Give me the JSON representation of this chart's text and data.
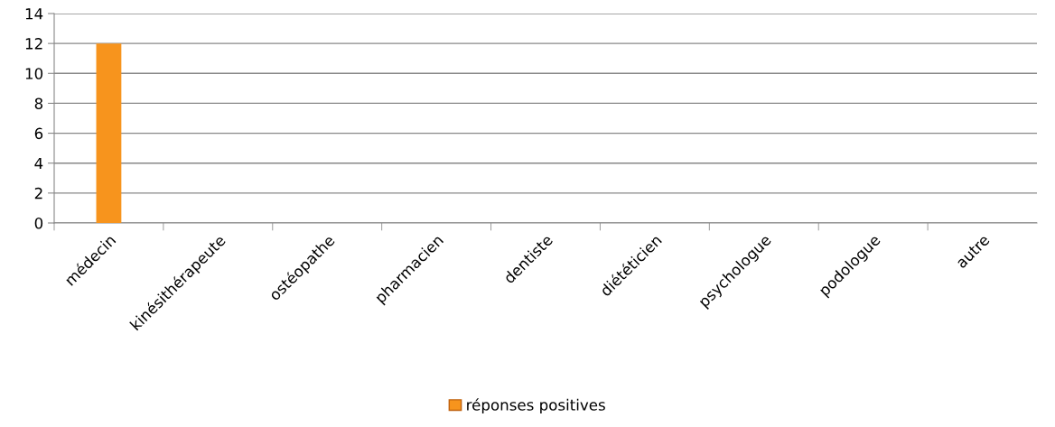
{
  "chart_data": {
    "type": "bar",
    "categories": [
      "médecin",
      "kinésithérapeute",
      "ostéopathe",
      "pharmacien",
      "dentiste",
      "diététicien",
      "psychologue",
      "podologue",
      "autre"
    ],
    "series": [
      {
        "name": "réponses positives",
        "color": "#f7941d",
        "values": [
          12,
          0,
          0,
          0,
          0,
          0,
          0,
          0,
          0
        ]
      }
    ],
    "ylim": [
      0,
      14
    ],
    "yticks": [
      0,
      2,
      4,
      6,
      8,
      10,
      12,
      14
    ],
    "grid": "y",
    "legend": "bottom"
  }
}
